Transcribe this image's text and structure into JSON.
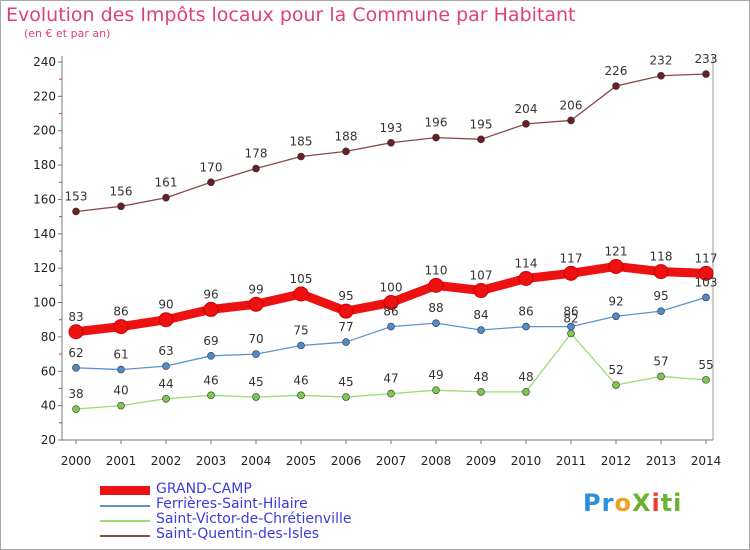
{
  "title": "Evolution des Impôts locaux pour la Commune par Habitant",
  "subtitle": "(en € et par an)",
  "logo": {
    "text": "ProXiti"
  },
  "chart_data": {
    "type": "line",
    "x": [
      "2000",
      "2001",
      "2002",
      "2003",
      "2004",
      "2005",
      "2006",
      "2007",
      "2008",
      "2009",
      "2010",
      "2011",
      "2012",
      "2013",
      "2014"
    ],
    "ylim": [
      20,
      240
    ],
    "yticks": [
      20,
      40,
      60,
      80,
      100,
      120,
      140,
      160,
      180,
      200,
      220,
      240
    ],
    "grid": false,
    "legend_position": "bottom-left",
    "series": [
      {
        "name": "GRAND-CAMP",
        "color": "#ee1111",
        "marker_color": "#ee1111",
        "width": "bold",
        "values": [
          83,
          86,
          90,
          96,
          99,
          105,
          95,
          100,
          110,
          107,
          114,
          117,
          121,
          118,
          117
        ]
      },
      {
        "name": "Ferrières-Saint-Hilaire",
        "color": "#5b95cc",
        "marker_color": "#4f8bc8",
        "values": [
          62,
          61,
          63,
          69,
          70,
          75,
          77,
          86,
          88,
          84,
          86,
          86,
          92,
          95,
          103
        ]
      },
      {
        "name": "Saint-Victor-de-Chrétienville",
        "color": "#99dd77",
        "marker_color": "#7cc84f",
        "values": [
          38,
          40,
          44,
          46,
          45,
          46,
          45,
          47,
          49,
          48,
          48,
          82,
          52,
          57,
          55
        ]
      },
      {
        "name": "Saint-Quentin-des-Isles",
        "color": "#8a4a4a",
        "marker_color": "#6b1f24",
        "values": [
          153,
          156,
          161,
          170,
          178,
          185,
          188,
          193,
          196,
          195,
          204,
          206,
          226,
          232,
          233
        ]
      }
    ],
    "data_labels": [
      [
        "83",
        "86",
        "90",
        "96",
        "99",
        "105",
        "95",
        "100",
        "110",
        "107",
        "114",
        "117",
        "121",
        "118",
        "117"
      ],
      [
        "62",
        "61",
        "63",
        "69",
        "70",
        "75",
        "77",
        "86",
        "88",
        "84",
        "86",
        "86",
        "92",
        "95",
        "103"
      ],
      [
        "38",
        "40",
        "44",
        "46",
        "45",
        "46",
        "45",
        "47",
        "49",
        "48",
        "48",
        "82",
        "52",
        "57",
        "55"
      ],
      [
        "153",
        "156",
        "161",
        "170",
        "178",
        "185",
        "188",
        "193",
        "196",
        "195",
        "204",
        "206",
        "226",
        "232",
        "233"
      ]
    ]
  }
}
